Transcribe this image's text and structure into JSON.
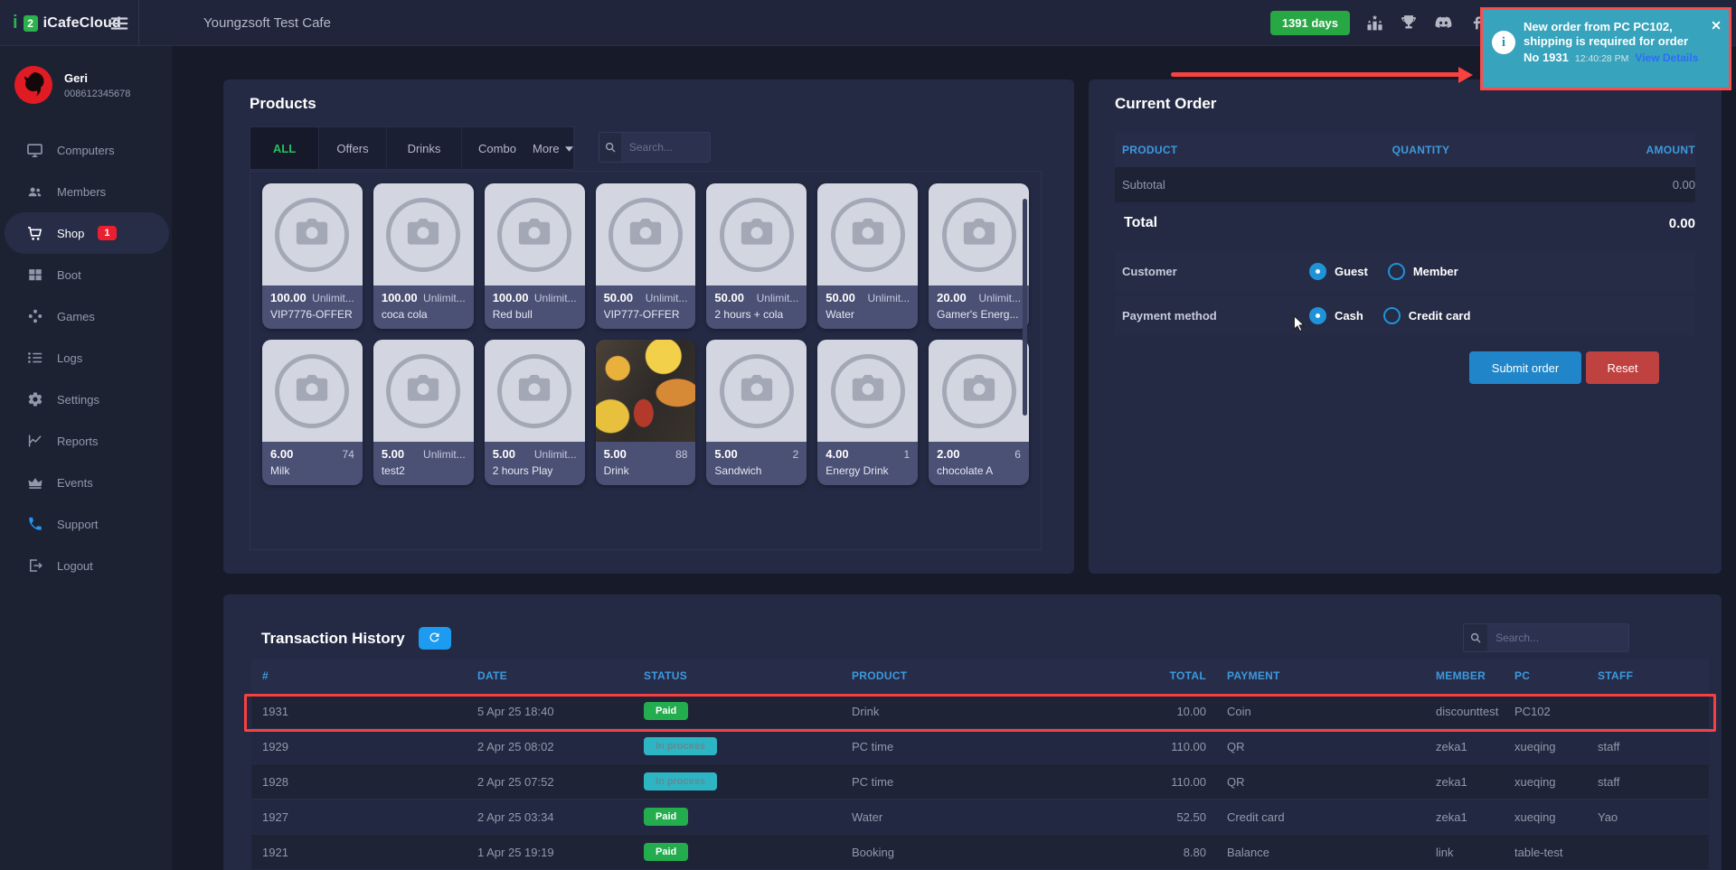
{
  "header": {
    "brand_mark_i": "i",
    "brand_mark_2": "2",
    "brand_name": "iCafeCloud",
    "cafe_name": "Youngzsoft Test Cafe",
    "days_badge": "1391 days",
    "icons": [
      "leaderboard",
      "trophy",
      "discord",
      "facebook"
    ]
  },
  "toast": {
    "line1": "New order from PC PC102,",
    "line2": "shipping is required for order",
    "order_no": "No 1931",
    "time": "12:40:28 PM",
    "link": "View Details",
    "background": "#37a3bc",
    "annotation_color": "#fb4b4b"
  },
  "sidebar": {
    "user": {
      "name": "Geri",
      "phone": "008612345678"
    },
    "items": [
      {
        "label": "Computers",
        "icon": "computers"
      },
      {
        "label": "Members",
        "icon": "members"
      },
      {
        "label": "Shop",
        "icon": "shop",
        "active": true,
        "badge": "1"
      },
      {
        "label": "Boot",
        "icon": "boot"
      },
      {
        "label": "Games",
        "icon": "games"
      },
      {
        "label": "Logs",
        "icon": "logs"
      },
      {
        "label": "Settings",
        "icon": "settings"
      },
      {
        "label": "Reports",
        "icon": "reports"
      },
      {
        "label": "Events",
        "icon": "events"
      },
      {
        "label": "Support",
        "icon": "support",
        "accent": true
      },
      {
        "label": "Logout",
        "icon": "logout"
      }
    ]
  },
  "products": {
    "title": "Products",
    "search_placeholder": "Search...",
    "tabs": [
      {
        "label": "ALL",
        "active": true
      },
      {
        "label": "Offers"
      },
      {
        "label": "Drinks"
      },
      {
        "label": "Combo"
      },
      {
        "label": "More",
        "dropdown": true
      }
    ],
    "items": [
      {
        "price": "100.00",
        "stock": "Unlimit...",
        "name": "VIP7776-OFFER"
      },
      {
        "price": "100.00",
        "stock": "Unlimit...",
        "name": "coca cola"
      },
      {
        "price": "100.00",
        "stock": "Unlimit...",
        "name": "Red bull"
      },
      {
        "price": "50.00",
        "stock": "Unlimit...",
        "name": "VIP777-OFFER"
      },
      {
        "price": "50.00",
        "stock": "Unlimit...",
        "name": "2 hours + cola"
      },
      {
        "price": "50.00",
        "stock": "Unlimit...",
        "name": "Water"
      },
      {
        "price": "20.00",
        "stock": "Unlimit...",
        "name": "Gamer's Energ..."
      },
      {
        "price": "6.00",
        "stock": "74",
        "name": "Milk"
      },
      {
        "price": "5.00",
        "stock": "Unlimit...",
        "name": "test2"
      },
      {
        "price": "5.00",
        "stock": "Unlimit...",
        "name": "2 hours Play"
      },
      {
        "price": "5.00",
        "stock": "88",
        "name": "Drink",
        "photo": true
      },
      {
        "price": "5.00",
        "stock": "2",
        "name": "Sandwich"
      },
      {
        "price": "4.00",
        "stock": "1",
        "name": "Energy Drink"
      },
      {
        "price": "2.00",
        "stock": "6",
        "name": "chocolate A"
      }
    ]
  },
  "order": {
    "title": "Current Order",
    "headers": {
      "product": "PRODUCT",
      "quantity": "QUANTITY",
      "amount": "AMOUNT"
    },
    "subtotal_label": "Subtotal",
    "subtotal_value": "0.00",
    "total_label": "Total",
    "total_value": "0.00",
    "customer_label": "Customer",
    "customer_options": [
      {
        "label": "Guest",
        "checked": true
      },
      {
        "label": "Member",
        "checked": false
      }
    ],
    "payment_label": "Payment method",
    "payment_options": [
      {
        "label": "Cash",
        "checked": true
      },
      {
        "label": "Credit card",
        "checked": false
      }
    ],
    "submit_label": "Submit order",
    "reset_label": "Reset",
    "submit_color": "#2086c9",
    "reset_color": "#bf4140"
  },
  "transactions": {
    "title": "Transaction History",
    "search_placeholder": "Search...",
    "headers": [
      "#",
      "DATE",
      "STATUS",
      "PRODUCT",
      "TOTAL",
      "PAYMENT",
      "MEMBER",
      "PC",
      "STAFF"
    ],
    "rows": [
      {
        "id": "1931",
        "date": "5 Apr 25 18:40",
        "status": "Paid",
        "product": "Drink",
        "total": "10.00",
        "payment": "Coin",
        "member": "discounttest",
        "pc": "PC102",
        "staff": "",
        "highlighted": true
      },
      {
        "id": "1929",
        "date": "2 Apr 25 08:02",
        "status": "In process",
        "product": "PC time",
        "total": "110.00",
        "payment": "QR",
        "member": "zeka1",
        "pc": "xueqing",
        "staff": "staff"
      },
      {
        "id": "1928",
        "date": "2 Apr 25 07:52",
        "status": "In process",
        "product": "PC time",
        "total": "110.00",
        "payment": "QR",
        "member": "zeka1",
        "pc": "xueqing",
        "staff": "staff"
      },
      {
        "id": "1927",
        "date": "2 Apr 25 03:34",
        "status": "Paid",
        "product": "Water",
        "total": "52.50",
        "payment": "Credit card",
        "member": "zeka1",
        "pc": "xueqing",
        "staff": "Yao"
      },
      {
        "id": "1921",
        "date": "1 Apr 25 19:19",
        "status": "Paid",
        "product": "Booking",
        "total": "8.80",
        "payment": "Balance",
        "member": "link",
        "pc": "table-test",
        "staff": ""
      }
    ],
    "status_colors": {
      "paid": "#23ad4e",
      "in_process": "#2eb5c3"
    },
    "header_text_color": "#3d99de"
  }
}
